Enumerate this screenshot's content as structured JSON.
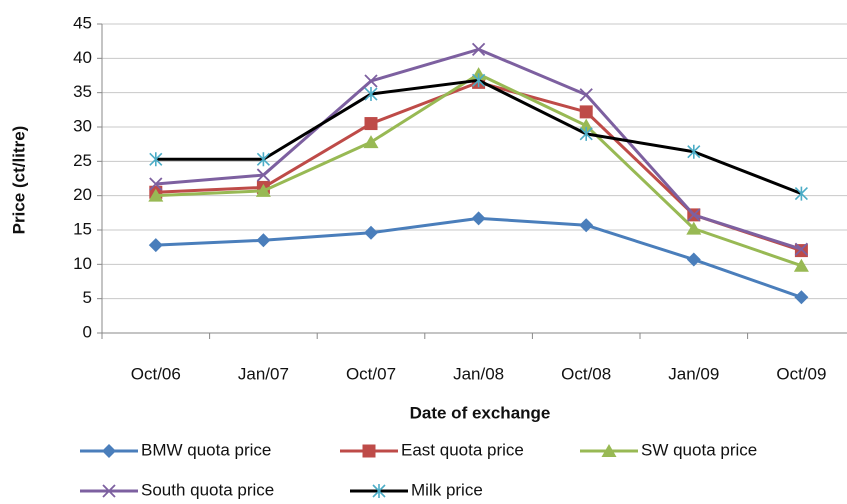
{
  "chart_data": {
    "type": "line",
    "x_label": "Date of exchange",
    "y_label": "Price (ct/litre)",
    "categories": [
      "Oct/06",
      "Jan/07",
      "Oct/07",
      "Jan/08",
      "Oct/08",
      "Jan/09",
      "Oct/09"
    ],
    "series": [
      {
        "name": "BMW quota price",
        "color": "#4a7ebb",
        "values": [
          12.8,
          13.5,
          14.6,
          16.7,
          15.7,
          10.7,
          5.2
        ]
      },
      {
        "name": "East quota price",
        "color": "#be4b48",
        "values": [
          20.5,
          21.2,
          30.5,
          36.5,
          32.2,
          17.2,
          12.0
        ]
      },
      {
        "name": "SW quota price",
        "color": "#98b954",
        "values": [
          20.0,
          20.7,
          27.8,
          37.7,
          30.2,
          15.2,
          9.8
        ]
      },
      {
        "name": "South quota price",
        "color": "#7d60a0",
        "values": [
          21.7,
          23.0,
          36.7,
          41.3,
          34.7,
          17.2,
          12.2
        ]
      },
      {
        "name": "Milk price",
        "color": "#000000",
        "values": [
          25.3,
          25.3,
          34.8,
          36.8,
          29.0,
          26.4,
          20.3
        ]
      }
    ],
    "ylim": [
      0,
      45
    ],
    "yticks": [
      0,
      5,
      10,
      15,
      20,
      25,
      30,
      35,
      40,
      45
    ],
    "grid": true,
    "legend": "bottom"
  }
}
